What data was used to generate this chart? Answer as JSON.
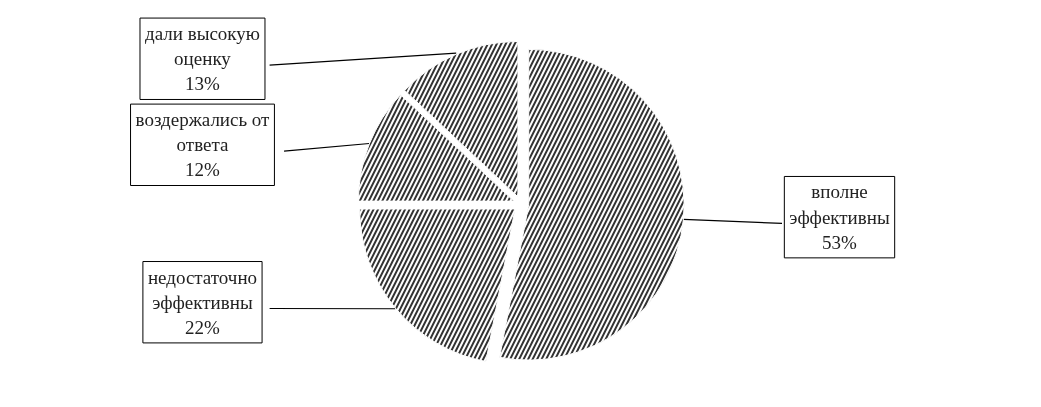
{
  "chart_data": {
    "type": "pie",
    "categories": [
      "вполне эффективны",
      "недостаточно эффективны",
      "воздержались от ответа",
      "дали высокую оценку"
    ],
    "values": [
      53,
      22,
      12,
      13
    ],
    "value_labels": [
      "53%",
      "22%",
      "12%",
      "13%"
    ],
    "colors": [
      "#333333",
      "#333333",
      "#333333",
      "#333333"
    ]
  }
}
